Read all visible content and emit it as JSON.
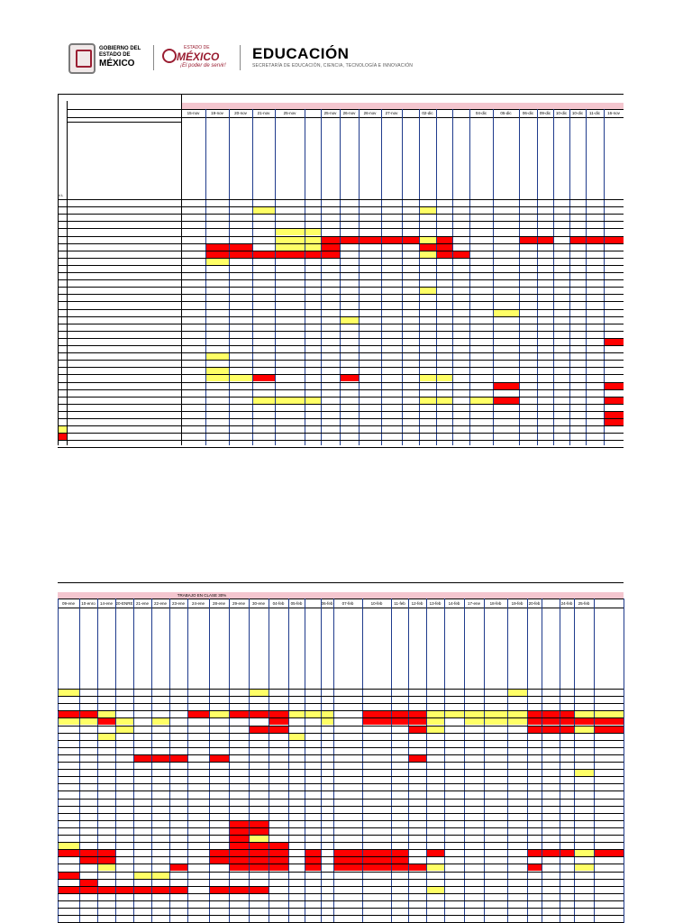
{
  "header": {
    "gov_line1": "GOBIERNO DEL",
    "gov_line2": "ESTADO DE",
    "gov_line3": "MÉXICO",
    "edomex_top": "ESTADO DE",
    "edomex_name": "MÉXICO",
    "edomex_slogan": "¡El poder de servir!",
    "edu_title": "EDUCACIÓN",
    "edu_subtitle": "SECRETARÍA DE EDUCACIÓN, CIENCIA, TECNOLOGÍA E INNOVACIÓN"
  },
  "table1": {
    "n_label": "N L",
    "dates": [
      "15-nov",
      "19-nov",
      "20-nov",
      "21-nov",
      "25-nov",
      "",
      "25-nov",
      "26-nov",
      "26-nov",
      "27-nov",
      "",
      "02-dic",
      "",
      "",
      "04-dic",
      "05-dic",
      "06-dic",
      "09-dic",
      "10-dic",
      "10-dic",
      "11-dic",
      "16-nov"
    ]
  },
  "table2": {
    "band_label": "TRABAJO EN CLASE 30%",
    "dates": [
      "09-ene",
      "10-enro",
      "14-ene",
      "20-ENRE",
      "21-ene",
      "22-ene",
      "23-ene",
      "24-ene",
      "28-ene",
      "29-ene",
      "30-ene",
      "04-feb",
      "05-feb",
      "",
      "06-feb",
      "07-feb",
      "10-feb",
      "11-feb",
      "12-feb",
      "13-feb",
      "14-feb",
      "17-ene",
      "18-feb",
      "19-feb",
      "20-feb",
      "",
      "24-feb",
      "25-feb"
    ]
  },
  "colors": {
    "yellow": "#ffff66",
    "red": "#ff0000",
    "band": "#f4c6cf",
    "blue": "#1f3b8c"
  }
}
